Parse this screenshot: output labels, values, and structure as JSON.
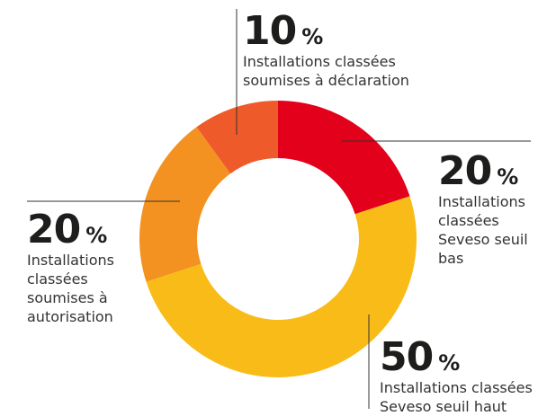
{
  "chart_data": {
    "type": "pie",
    "categories": [
      "Installations classées Seveso seuil bas",
      "Installations classées Seveso seuil haut",
      "Installations classées soumises à autorisation",
      "Installations classées soumises à déclaration"
    ],
    "values": [
      20,
      50,
      20,
      10
    ],
    "unit": "%",
    "colors": [
      "#e2001a",
      "#f9bb17",
      "#f39220",
      "#ef5a2a"
    ],
    "donut": true
  }
}
